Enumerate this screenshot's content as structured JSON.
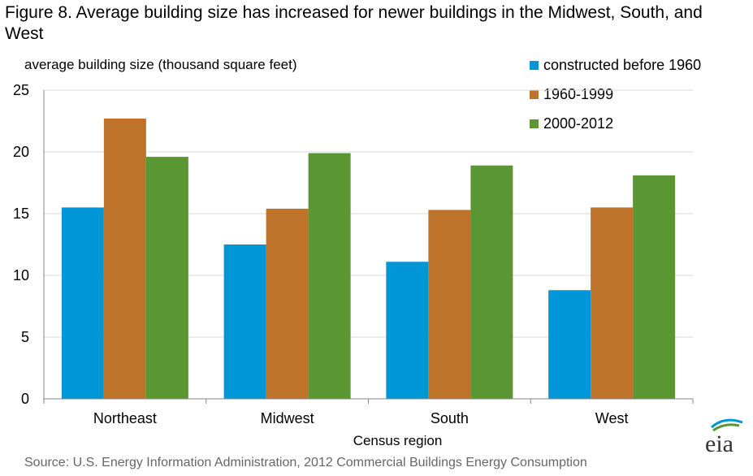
{
  "title": "Figure 8. Average  building size has increased for newer buildings in the Midwest, South, and West",
  "source": "Source: U.S. Energy Information  Administration,  2012 Commercial  Buildings Energy Consumption",
  "logo_text": "eia",
  "colors": {
    "series1": "#0096d7",
    "series2": "#bd732a",
    "series3": "#5a9632",
    "grid": "#d9d9d9",
    "axis": "#868686"
  },
  "chart_data": {
    "type": "bar",
    "title": "Figure 8. Average  building size has increased for newer buildings in the Midwest, South, and West",
    "xlabel": "Census region",
    "ylabel": "average building  size (thousand  square  feet)",
    "categories": [
      "Northeast",
      "Midwest",
      "South",
      "West"
    ],
    "series": [
      {
        "name": "constructed before 1960",
        "color": "#0096d7",
        "values": [
          15.5,
          12.5,
          11.1,
          8.8
        ]
      },
      {
        "name": "1960-1999",
        "color": "#bd732a",
        "values": [
          22.7,
          15.4,
          15.3,
          15.5
        ]
      },
      {
        "name": "2000-2012",
        "color": "#5a9632",
        "values": [
          19.6,
          19.9,
          18.9,
          18.1
        ]
      }
    ],
    "ylim": [
      0,
      25
    ],
    "yticks": [
      0,
      5,
      10,
      15,
      20,
      25
    ],
    "grid": true,
    "legend_position": "top-right"
  }
}
